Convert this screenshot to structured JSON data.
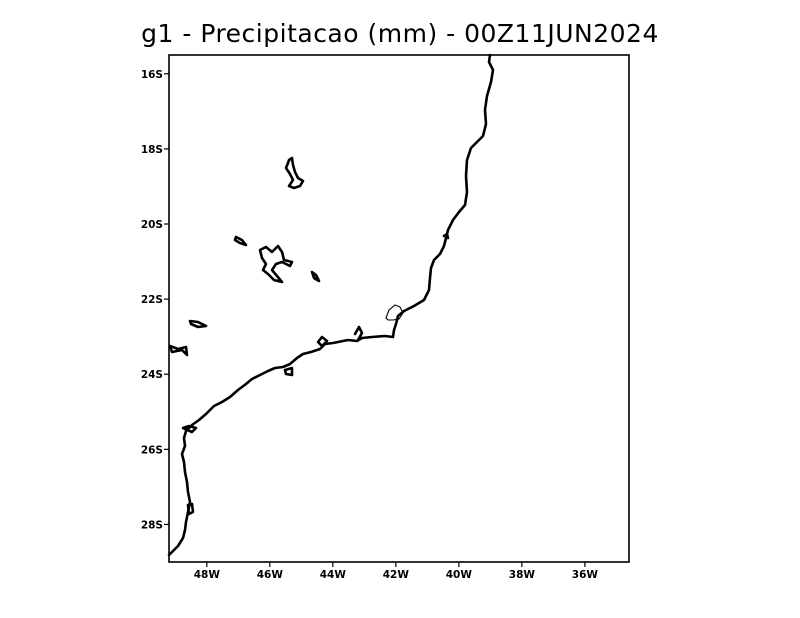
{
  "map": {
    "title": "g1 - Precipitacao (mm) - 00Z11JUN2024",
    "lon_range": [
      -49.2,
      -34.6
    ],
    "lat_range": [
      -29,
      -15.5
    ],
    "x_ticks": [
      {
        "lon": -48,
        "label": "48W"
      },
      {
        "lon": -46,
        "label": "46W"
      },
      {
        "lon": -44,
        "label": "44W"
      },
      {
        "lon": -42,
        "label": "42W"
      },
      {
        "lon": -40,
        "label": "40W"
      },
      {
        "lon": -38,
        "label": "38W"
      },
      {
        "lon": -36,
        "label": "36W"
      }
    ],
    "y_ticks": [
      {
        "lat": -16,
        "label": "16S"
      },
      {
        "lat": -18,
        "label": "18S"
      },
      {
        "lat": -20,
        "label": "20S"
      },
      {
        "lat": -22,
        "label": "22S"
      },
      {
        "lat": -24,
        "label": "24S"
      },
      {
        "lat": -26,
        "label": "26S"
      },
      {
        "lat": -28,
        "label": "28S"
      }
    ],
    "colors": {
      "background": "#ffffff",
      "outline": "#000000"
    }
  }
}
